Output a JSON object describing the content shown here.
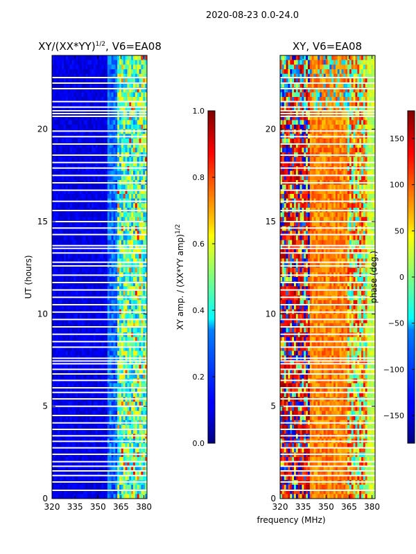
{
  "chart_data": {
    "type": "heatmap",
    "suptitle": "2020-08-23 0.0-24.0",
    "xlabel": "frequency (MHz)",
    "panels": [
      {
        "name": "amplitude",
        "title": "XY/(XX*YY)",
        "title_sup": "1/2",
        "title_suffix": ", V6=EA08",
        "ylabel": "UT (hours)",
        "xlim": [
          320,
          382
        ],
        "ylim": [
          0,
          24
        ],
        "xticks": [
          "320",
          "335",
          "350",
          "365",
          "380"
        ],
        "yticks": [
          "0",
          "5",
          "10",
          "15",
          "20"
        ],
        "colormap": "jet",
        "colorbar": {
          "label": "XY amp. / (XX*YY amp)",
          "label_sup": "1/2",
          "range": [
            0.0,
            1.0
          ],
          "ticks": [
            "0.0",
            "0.2",
            "0.4",
            "0.6",
            "0.8",
            "1.0"
          ]
        }
      },
      {
        "name": "phase",
        "title": "XY, V6=EA08",
        "xlim": [
          320,
          382
        ],
        "ylim": [
          0,
          24
        ],
        "xticks": [
          "320",
          "335",
          "350",
          "365",
          "380"
        ],
        "yticks": [
          "0",
          "5",
          "10",
          "15",
          "20"
        ],
        "colormap": "jet",
        "colorbar": {
          "label": "phase (deg.)",
          "range": [
            -180,
            180
          ],
          "ticks": [
            "−150",
            "−100",
            "−50",
            "0",
            "50",
            "100",
            "150"
          ]
        }
      }
    ],
    "flagged_hours": [
      0.45,
      0.9,
      1.25,
      1.5,
      1.75,
      2.0,
      2.4,
      2.75,
      3.1,
      3.4,
      3.75,
      4.1,
      4.5,
      5.0,
      5.4,
      5.75,
      6.0,
      6.4,
      6.75,
      7.0,
      7.3,
      7.45,
      7.6,
      8.2,
      8.5,
      8.9,
      9.3,
      9.7,
      10.1,
      10.5,
      10.9,
      11.3,
      11.7,
      12.1,
      12.6,
      12.8,
      13.3,
      13.55,
      13.7,
      14.3,
      14.65,
      15.0,
      15.6,
      16.1,
      16.7,
      17.1,
      17.5,
      17.9,
      18.2,
      18.6,
      19.2,
      19.6,
      19.9,
      20.7,
      20.85,
      21.0,
      21.2,
      21.5,
      22.2,
      22.5,
      22.8
    ]
  }
}
